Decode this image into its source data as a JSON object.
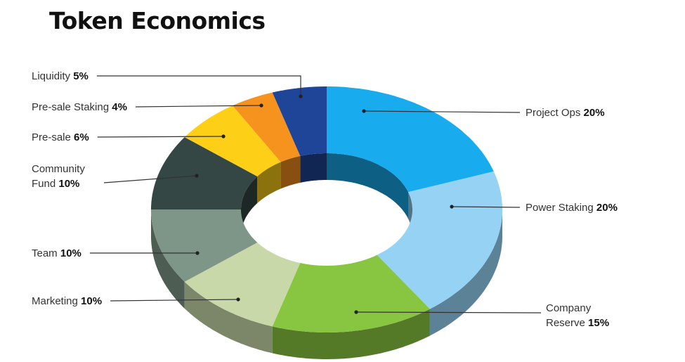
{
  "chart_data": {
    "type": "pie",
    "title": "Token Economics",
    "style": "3d-donut",
    "segments": [
      {
        "name": "Project Ops",
        "label_lines": [
          "Project Ops"
        ],
        "value": 20,
        "percent_label": "20%",
        "color": "#18ACEF"
      },
      {
        "name": "Power Staking",
        "label_lines": [
          "Power Staking"
        ],
        "value": 20,
        "percent_label": "20%",
        "color": "#95D2F4"
      },
      {
        "name": "Company Reserve",
        "label_lines": [
          "Company",
          "Reserve"
        ],
        "value": 15,
        "percent_label": "15%",
        "color": "#88C540"
      },
      {
        "name": "Marketing",
        "label_lines": [
          "Marketing"
        ],
        "value": 10,
        "percent_label": "10%",
        "color": "#C8D8A8"
      },
      {
        "name": "Team",
        "label_lines": [
          "Team"
        ],
        "value": 10,
        "percent_label": "10%",
        "color": "#7E9688"
      },
      {
        "name": "Community Fund",
        "label_lines": [
          "Community",
          "Fund"
        ],
        "value": 10,
        "percent_label": "10%",
        "color": "#344745"
      },
      {
        "name": "Pre-sale",
        "label_lines": [
          "Pre-sale"
        ],
        "value": 6,
        "percent_label": "6%",
        "color": "#FDCF17"
      },
      {
        "name": "Pre-sale Staking",
        "label_lines": [
          "Pre-sale Staking"
        ],
        "value": 4,
        "percent_label": "4%",
        "color": "#F6921E"
      },
      {
        "name": "Liquidity",
        "label_lines": [
          "Liquidity"
        ],
        "value": 5,
        "percent_label": "5%",
        "color": "#1E4597"
      }
    ]
  }
}
